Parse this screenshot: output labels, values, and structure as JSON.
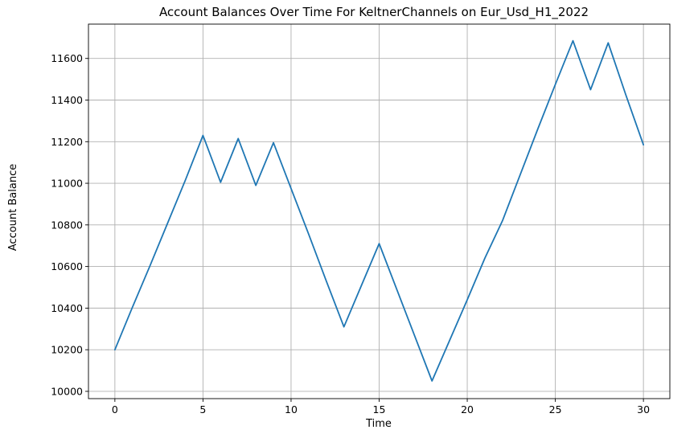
{
  "chart_data": {
    "type": "line",
    "title": "Account Balances Over Time For KeltnerChannels on Eur_Usd_H1_2022",
    "xlabel": "Time",
    "ylabel": "Account Balance",
    "xlim": [
      -1.5,
      31.5
    ],
    "ylim": [
      9965,
      11765
    ],
    "x_ticks": [
      0,
      5,
      10,
      15,
      20,
      25,
      30
    ],
    "y_ticks": [
      10000,
      10200,
      10400,
      10600,
      10800,
      11000,
      11200,
      11400,
      11600
    ],
    "grid": true,
    "legend": "none",
    "series": [
      {
        "color": "#1f77b4",
        "x": [
          0,
          1,
          2,
          3,
          4,
          5,
          6,
          7,
          8,
          9,
          10,
          11,
          12,
          13,
          14,
          15,
          16,
          17,
          18,
          19,
          20,
          21,
          22,
          23,
          24,
          25,
          26,
          27,
          28,
          29,
          30
        ],
        "y": [
          10200,
          10405,
          10605,
          10810,
          11015,
          11230,
          11005,
          11215,
          10990,
          11195,
          10975,
          10755,
          10530,
          10310,
          10510,
          10710,
          10490,
          10270,
          10050,
          10245,
          10440,
          10640,
          10820,
          11040,
          11260,
          11475,
          11685,
          11450,
          11675,
          11425,
          11185
        ]
      }
    ]
  }
}
